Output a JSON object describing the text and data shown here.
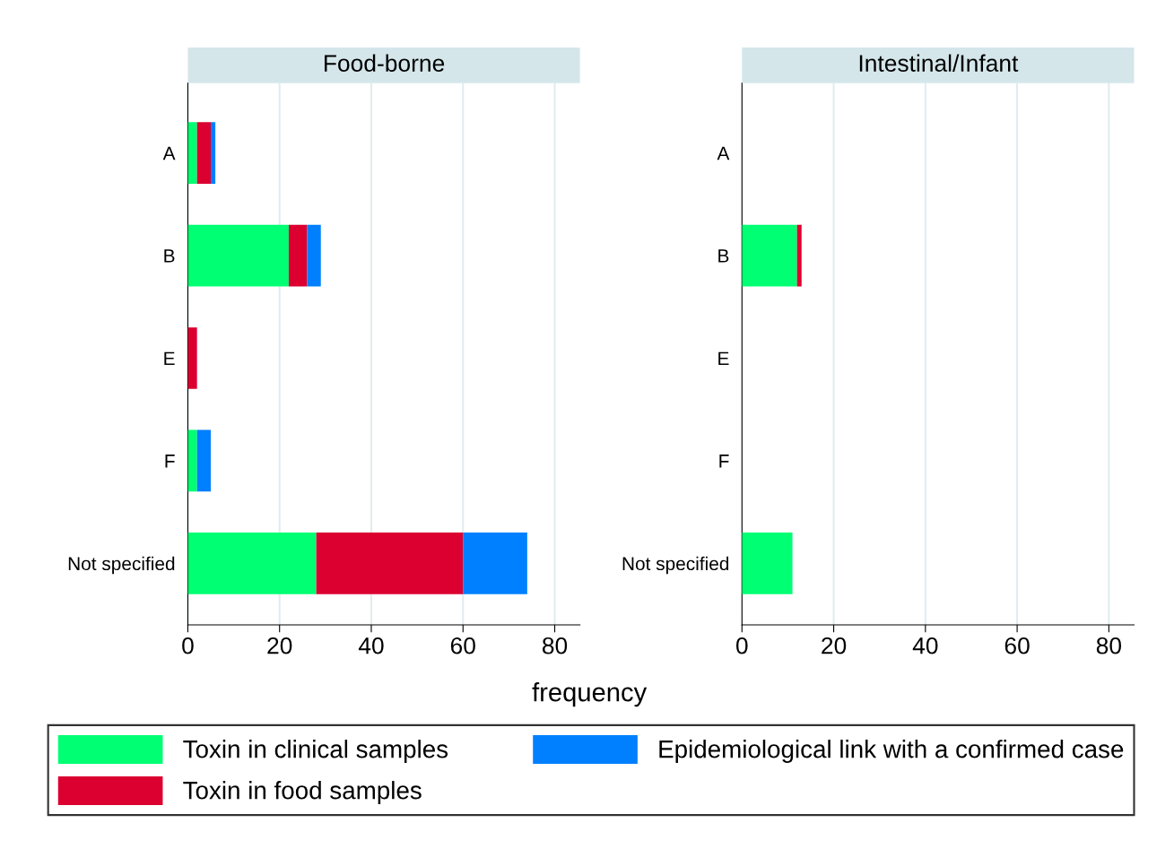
{
  "chart_data": [
    {
      "type": "bar",
      "orientation": "horizontal",
      "stacked": true,
      "title": "Food-borne",
      "xlabel": "frequency",
      "categories": [
        "A",
        "B",
        "E",
        "F",
        "Not specified"
      ],
      "xlim": [
        0,
        85.5
      ],
      "xticks": [
        0,
        20,
        40,
        60,
        80
      ],
      "grid": "x",
      "legend": "bottom",
      "series": [
        {
          "name": "Toxin in clinical samples",
          "color": "#00ff73",
          "values": [
            2,
            22,
            0,
            2,
            28
          ]
        },
        {
          "name": "Toxin in food samples",
          "color": "#dc0030",
          "values": [
            3,
            4,
            2,
            0,
            32
          ]
        },
        {
          "name": "Epidemiological link with a confirmed case",
          "color": "#0080ff",
          "values": [
            1,
            3,
            0,
            3,
            14
          ]
        }
      ]
    },
    {
      "type": "bar",
      "orientation": "horizontal",
      "stacked": true,
      "title": "Intestinal/Infant",
      "categories": [
        "A",
        "B",
        "E",
        "F",
        "Not specified"
      ],
      "xlim": [
        0,
        85.5
      ],
      "xticks": [
        0,
        20,
        40,
        60,
        80
      ],
      "grid": "x",
      "series": [
        {
          "color": "#00ff73",
          "values": [
            0,
            12,
            0,
            0,
            11
          ]
        },
        {
          "color": "#dc0030",
          "values": [
            0,
            1,
            0,
            0,
            0
          ]
        },
        {
          "color": "#0080ff",
          "values": [
            0,
            0,
            0,
            0,
            0
          ]
        }
      ]
    }
  ]
}
